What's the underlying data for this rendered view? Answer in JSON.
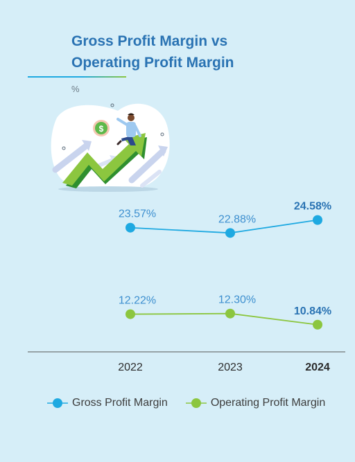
{
  "title_line1": "Gross Profit Margin vs",
  "title_line2": "Operating Profit Margin",
  "unit": "%",
  "colors": {
    "background": "#d6eef8",
    "title": "#2a73b3",
    "gross": "#1ea9e1",
    "operating": "#8cc63f",
    "label_blue": "#3d8fcf",
    "axis_text": "#2b2b2b"
  },
  "illustration": {
    "icon": "growth-arrow-businessman-icon",
    "dollar_symbol": "$"
  },
  "chart_data": {
    "type": "line",
    "categories": [
      "2022",
      "2023",
      "2024"
    ],
    "highlight_category": "2024",
    "ylim": [
      8,
      28
    ],
    "series": [
      {
        "name": "Gross Profit Margin",
        "values": [
          23.57,
          22.88,
          24.58
        ],
        "labels": [
          "23.57%",
          "22.88%",
          "24.58%"
        ],
        "color": "#1ea9e1"
      },
      {
        "name": "Operating Profit Margin",
        "values": [
          12.22,
          12.3,
          10.84
        ],
        "labels": [
          "12.22%",
          "12.30%",
          "10.84%"
        ],
        "color": "#8cc63f"
      }
    ],
    "legend_position": "bottom",
    "grid": false
  }
}
